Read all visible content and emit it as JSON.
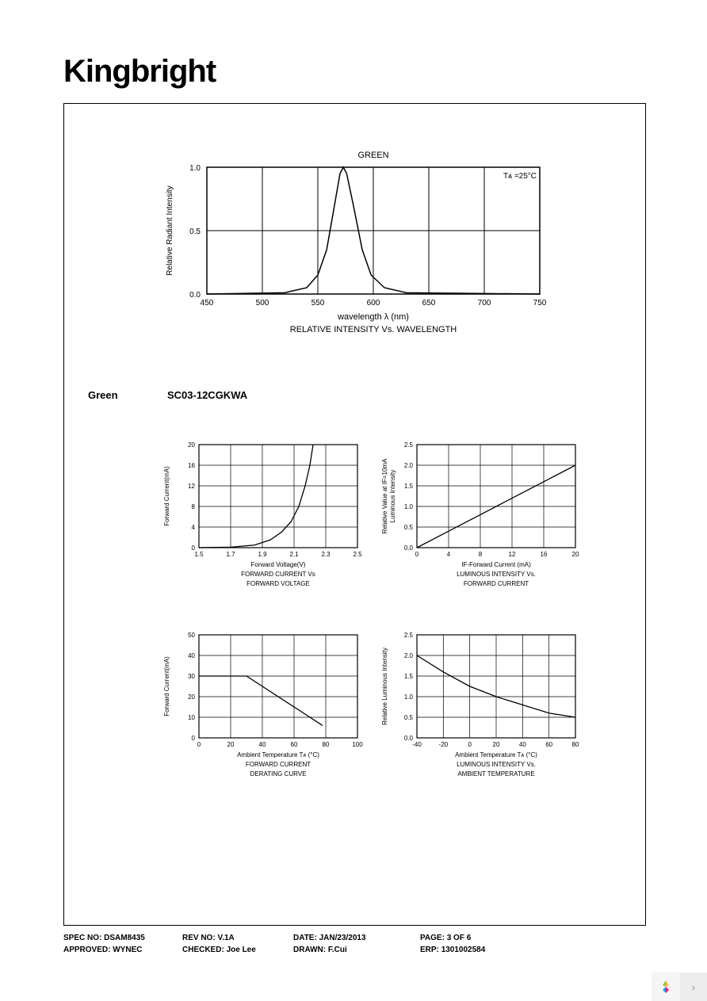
{
  "brand": "Kingbright",
  "section": {
    "color_label": "Green",
    "part_number": "SC03-12CGKWA"
  },
  "main_chart": {
    "type": "line",
    "title": "GREEN",
    "subtitle": "RELATIVE INTENSITY Vs. WAVELENGTH",
    "xlabel": "wavelength λ  (nm)",
    "ylabel": "Relative Radiant Intensity",
    "annotation": "Tᴀ =25°C",
    "xlim": [
      450,
      750
    ],
    "ylim": [
      0,
      1.0
    ],
    "xtick_step": 50,
    "ytick_step": 0.5,
    "series": [
      {
        "x": 450,
        "y": 0
      },
      {
        "x": 520,
        "y": 0.01
      },
      {
        "x": 540,
        "y": 0.05
      },
      {
        "x": 550,
        "y": 0.15
      },
      {
        "x": 558,
        "y": 0.35
      },
      {
        "x": 565,
        "y": 0.7
      },
      {
        "x": 570,
        "y": 0.95
      },
      {
        "x": 573,
        "y": 1.0
      },
      {
        "x": 576,
        "y": 0.95
      },
      {
        "x": 582,
        "y": 0.7
      },
      {
        "x": 590,
        "y": 0.35
      },
      {
        "x": 598,
        "y": 0.15
      },
      {
        "x": 610,
        "y": 0.05
      },
      {
        "x": 630,
        "y": 0.01
      },
      {
        "x": 750,
        "y": 0
      }
    ],
    "line_color": "#000000",
    "grid_color": "#000000",
    "background_color": "#ffffff"
  },
  "small_charts": [
    {
      "id": "fwd_voltage",
      "type": "line",
      "xlabel": "Forward Voltage(V)",
      "title_line1": "FORWARD CURRENT Vs",
      "title_line2": "FORWARD VOLTAGE",
      "ylabel": "Forward Current(mA)",
      "xlim": [
        1.5,
        2.5
      ],
      "xtick_step": 0.2,
      "ylim": [
        0,
        20
      ],
      "ytick_step": 4,
      "series": [
        {
          "x": 1.5,
          "y": 0
        },
        {
          "x": 1.7,
          "y": 0.1
        },
        {
          "x": 1.85,
          "y": 0.5
        },
        {
          "x": 1.95,
          "y": 1.5
        },
        {
          "x": 2.02,
          "y": 3
        },
        {
          "x": 2.08,
          "y": 5
        },
        {
          "x": 2.13,
          "y": 8
        },
        {
          "x": 2.17,
          "y": 12
        },
        {
          "x": 2.2,
          "y": 16
        },
        {
          "x": 2.22,
          "y": 20
        }
      ],
      "line_color": "#000000",
      "grid_color": "#000000"
    },
    {
      "id": "lum_fwd_current",
      "type": "line",
      "xlabel": "IF-Forward Current (mA)",
      "title_line1": "LUMINOUS INTENSITY Vs.",
      "title_line2": "FORWARD CURRENT",
      "ylabel": "Luminous Intensity\nRelative Value at IF=10mA",
      "xlim": [
        0,
        20
      ],
      "xtick_step": 4,
      "ylim": [
        0,
        2.5
      ],
      "ytick_step": 0.5,
      "series": [
        {
          "x": 0,
          "y": 0
        },
        {
          "x": 4,
          "y": 0.4
        },
        {
          "x": 8,
          "y": 0.8
        },
        {
          "x": 12,
          "y": 1.2
        },
        {
          "x": 16,
          "y": 1.6
        },
        {
          "x": 20,
          "y": 2.0
        }
      ],
      "line_color": "#000000",
      "grid_color": "#000000"
    },
    {
      "id": "derating",
      "type": "line",
      "xlabel": "Ambient Temperature Tᴀ (°C)",
      "title_line1": "FORWARD CURRENT",
      "title_line2": "DERATING CURVE",
      "ylabel": "Forward Current(mA)",
      "xlim": [
        0,
        100
      ],
      "xtick_step": 20,
      "ylim": [
        0,
        50
      ],
      "ytick_step": 10,
      "series": [
        {
          "x": 0,
          "y": 30
        },
        {
          "x": 30,
          "y": 30
        },
        {
          "x": 78,
          "y": 6
        }
      ],
      "line_color": "#000000",
      "grid_color": "#000000"
    },
    {
      "id": "lum_ambient",
      "type": "line",
      "xlabel": "Ambient Temperature Tᴀ (°C)",
      "title_line1": "LUMINOUS INTENSITY Vs.",
      "title_line2": "AMBIENT TEMPERATURE",
      "ylabel": "Relative Luminous Intensity",
      "xlim": [
        -40,
        80
      ],
      "xtick_step": 20,
      "ylim": [
        0,
        2.5
      ],
      "ytick_step": 0.5,
      "series": [
        {
          "x": -40,
          "y": 2.0
        },
        {
          "x": -20,
          "y": 1.6
        },
        {
          "x": 0,
          "y": 1.25
        },
        {
          "x": 20,
          "y": 1.0
        },
        {
          "x": 40,
          "y": 0.8
        },
        {
          "x": 60,
          "y": 0.6
        },
        {
          "x": 80,
          "y": 0.5
        }
      ],
      "line_color": "#000000",
      "grid_color": "#000000"
    }
  ],
  "footer": {
    "row1": {
      "spec_label": "SPEC NO:",
      "spec_value": "DSAM8435",
      "rev_label": "REV NO:",
      "rev_value": "V.1A",
      "date_label": "DATE:",
      "date_value": "JAN/23/2013",
      "page_label": "PAGE:",
      "page_value": "3 OF 6"
    },
    "row2": {
      "approved_label": "APPROVED:",
      "approved_value": "WYNEC",
      "checked_label": "CHECKED:",
      "checked_value": "Joe Lee",
      "drawn_label": "DRAWN:",
      "drawn_value": "F.Cui",
      "erp_label": "ERP:",
      "erp_value": "1301002584"
    }
  },
  "fonts": {
    "chart_label_fontsize": 9,
    "chart_tick_fontsize": 8
  }
}
